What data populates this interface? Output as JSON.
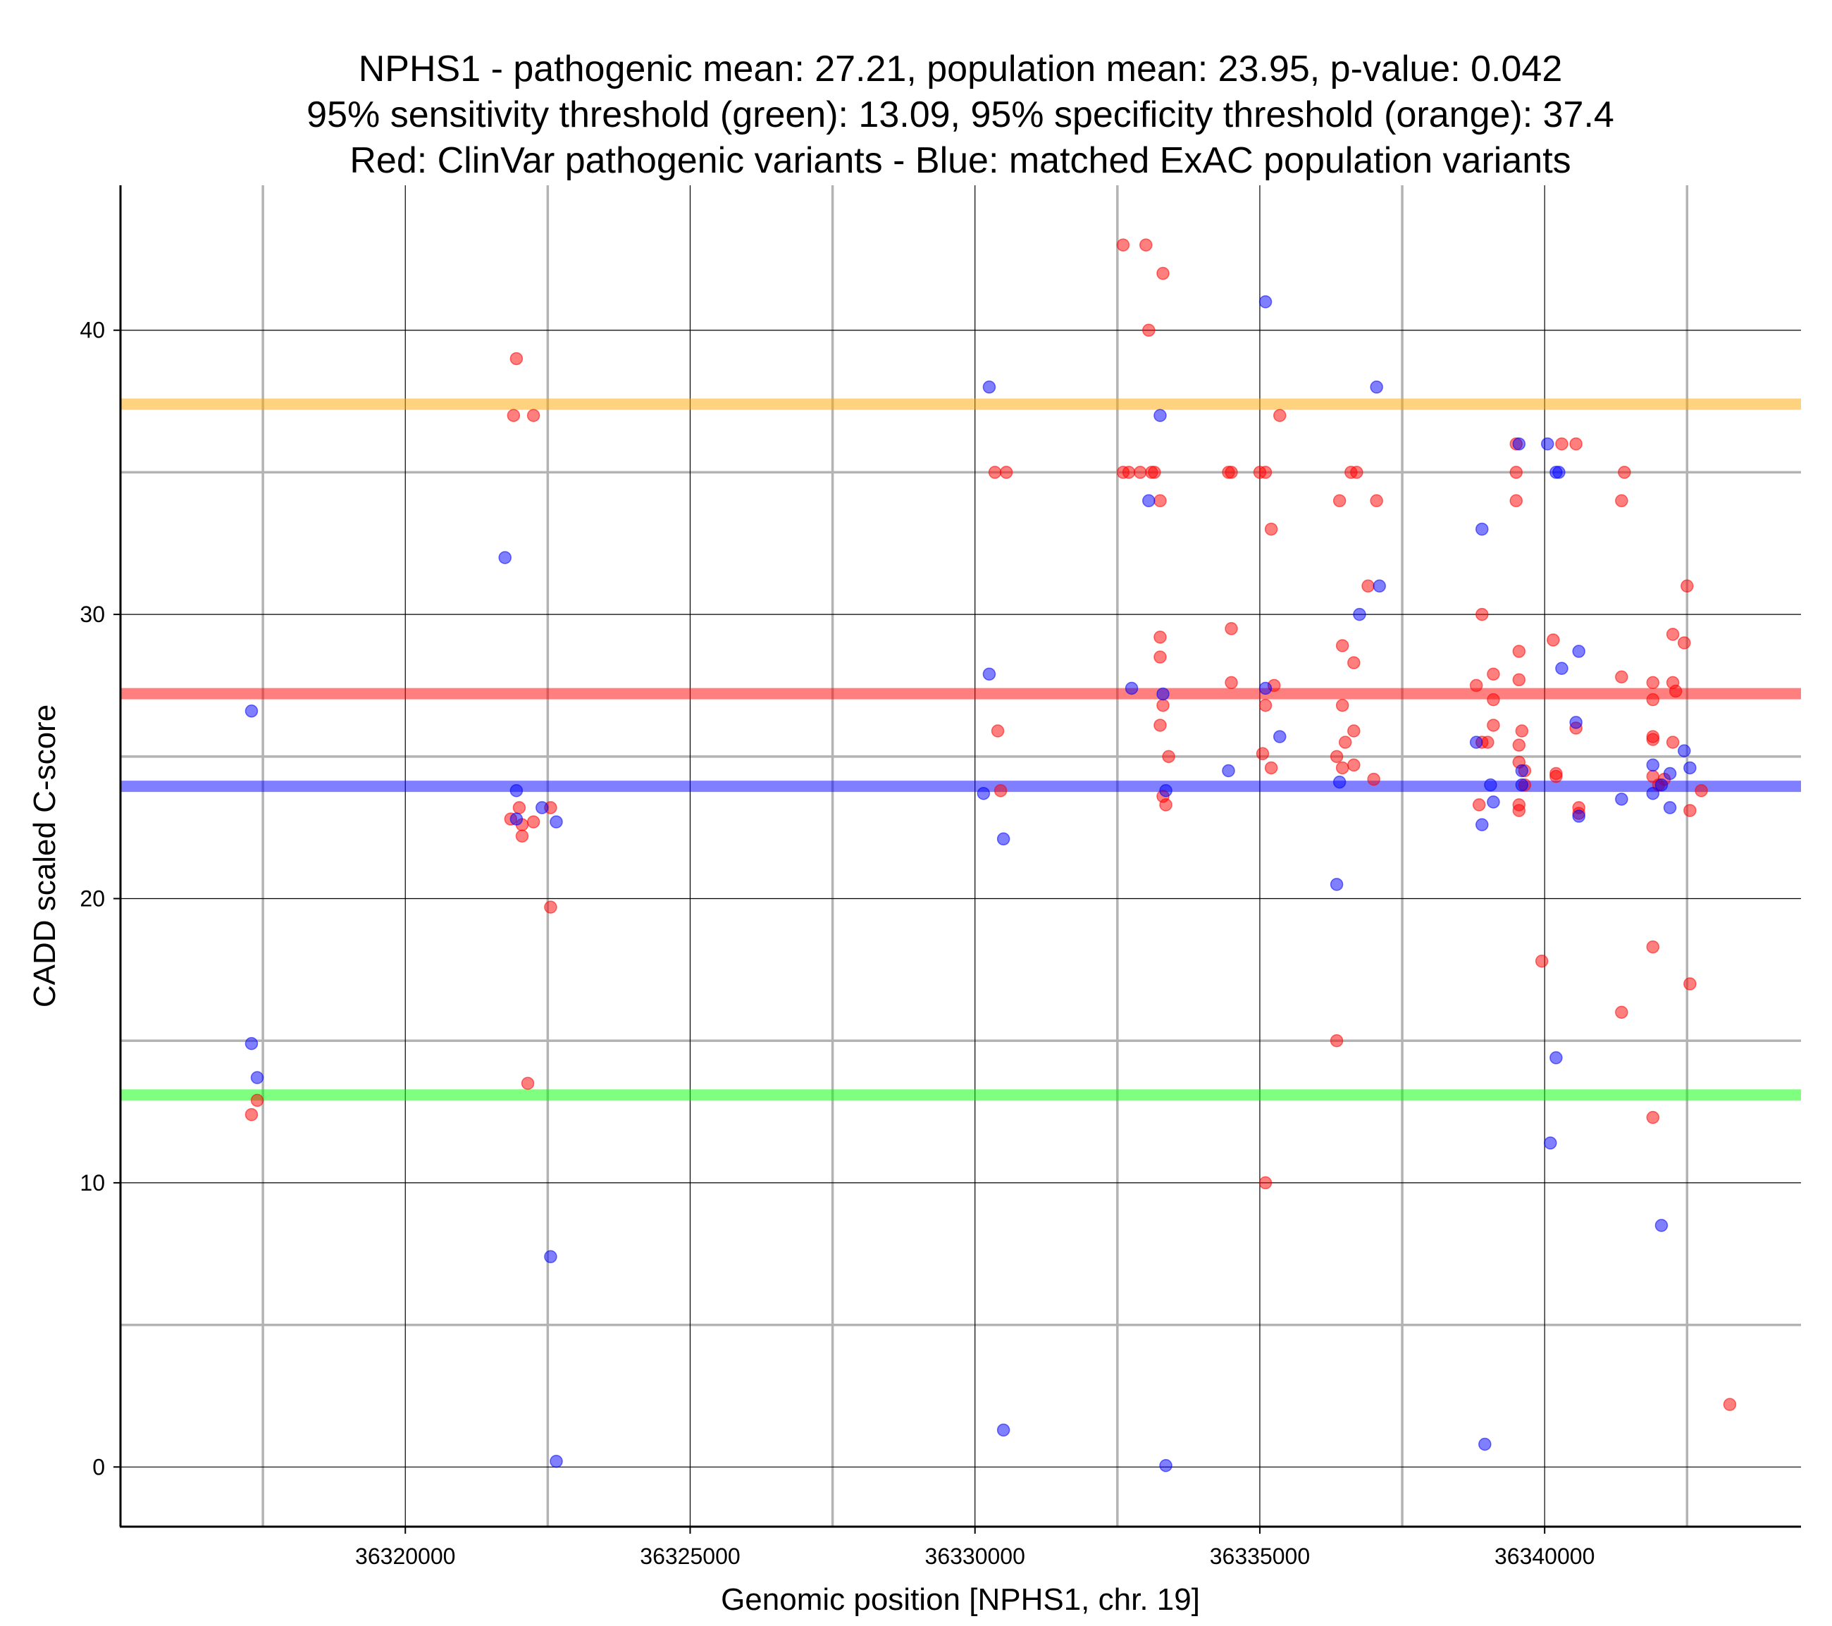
{
  "chart_data": {
    "type": "scatter",
    "title": [
      "NPHS1 - pathogenic mean: 27.21, population mean: 23.95, p-value: 0.042",
      "95% sensitivity threshold (green): 13.09, 95% specificity threshold (orange): 37.4",
      "Red: ClinVar pathogenic variants - Blue: matched ExAC population variants"
    ],
    "xlabel": "Genomic position [NPHS1, chr. 19]",
    "ylabel": "CADD scaled C-score",
    "xlim": [
      36315000,
      36344500
    ],
    "ylim": [
      -2.1,
      45.1
    ],
    "x_major_ticks": [
      36320000,
      36325000,
      36330000,
      36335000,
      36340000
    ],
    "x_tick_labels": [
      "36320000",
      "36325000",
      "36330000",
      "36335000",
      "36340000"
    ],
    "x_minor_gridlines": [
      36317500,
      36322500,
      36327500,
      36332500,
      36337500,
      36342500
    ],
    "y_major_ticks": [
      0,
      10,
      20,
      30,
      40
    ],
    "y_tick_labels": [
      "0",
      "10",
      "20",
      "30",
      "40"
    ],
    "y_minor_gridlines": [
      5,
      15,
      25,
      35
    ],
    "grid": true,
    "hlines": [
      {
        "name": "specificity-threshold",
        "value": 37.4,
        "color": "#ffa500"
      },
      {
        "name": "pathogenic-mean",
        "value": 27.21,
        "color": "#ff0000"
      },
      {
        "name": "population-mean",
        "value": 23.95,
        "color": "#0000ff"
      },
      {
        "name": "sensitivity-threshold",
        "value": 13.09,
        "color": "#00ff00"
      }
    ],
    "series": [
      {
        "name": "ClinVar pathogenic variants",
        "color": "#ff0000",
        "points": [
          [
            36317300,
            12.4
          ],
          [
            36317400,
            12.9
          ],
          [
            36321850,
            22.8
          ],
          [
            36321900,
            37.0
          ],
          [
            36321950,
            39.0
          ],
          [
            36322000,
            23.2
          ],
          [
            36322050,
            22.6
          ],
          [
            36322050,
            22.2
          ],
          [
            36322150,
            13.5
          ],
          [
            36322250,
            22.7
          ],
          [
            36322250,
            37.0
          ],
          [
            36322550,
            23.2
          ],
          [
            36322550,
            19.7
          ],
          [
            36330350,
            35.0
          ],
          [
            36330400,
            25.9
          ],
          [
            36330450,
            23.8
          ],
          [
            36330550,
            35.0
          ],
          [
            36332600,
            43.0
          ],
          [
            36332600,
            35.0
          ],
          [
            36332700,
            35.0
          ],
          [
            36332900,
            35.0
          ],
          [
            36333000,
            43.0
          ],
          [
            36333050,
            40.0
          ],
          [
            36333100,
            35.0
          ],
          [
            36333150,
            35.0
          ],
          [
            36333250,
            34.0
          ],
          [
            36333250,
            29.2
          ],
          [
            36333250,
            28.5
          ],
          [
            36333250,
            26.1
          ],
          [
            36333300,
            42.0
          ],
          [
            36333300,
            26.8
          ],
          [
            36333300,
            23.6
          ],
          [
            36333350,
            23.3
          ],
          [
            36333400,
            25.0
          ],
          [
            36334450,
            35.0
          ],
          [
            36334500,
            35.0
          ],
          [
            36334500,
            29.5
          ],
          [
            36334500,
            27.6
          ],
          [
            36335000,
            35.0
          ],
          [
            36335050,
            25.1
          ],
          [
            36335100,
            35.0
          ],
          [
            36335100,
            26.8
          ],
          [
            36335100,
            10.0
          ],
          [
            36335200,
            33.0
          ],
          [
            36335200,
            24.6
          ],
          [
            36335250,
            27.5
          ],
          [
            36335350,
            37.0
          ],
          [
            36336350,
            25.0
          ],
          [
            36336350,
            15.0
          ],
          [
            36336400,
            34.0
          ],
          [
            36336450,
            28.9
          ],
          [
            36336450,
            26.8
          ],
          [
            36336450,
            24.6
          ],
          [
            36336500,
            25.5
          ],
          [
            36336600,
            35.0
          ],
          [
            36336650,
            28.3
          ],
          [
            36336650,
            25.9
          ],
          [
            36336650,
            24.7
          ],
          [
            36336700,
            35.0
          ],
          [
            36336900,
            31.0
          ],
          [
            36337000,
            24.2
          ],
          [
            36337050,
            34.0
          ],
          [
            36338800,
            27.5
          ],
          [
            36338850,
            23.3
          ],
          [
            36338900,
            30.0
          ],
          [
            36338900,
            25.5
          ],
          [
            36339000,
            25.5
          ],
          [
            36339100,
            27.9
          ],
          [
            36339100,
            27.0
          ],
          [
            36339100,
            26.1
          ],
          [
            36339500,
            36.0
          ],
          [
            36339500,
            35.0
          ],
          [
            36339500,
            34.0
          ],
          [
            36339550,
            28.7
          ],
          [
            36339550,
            27.7
          ],
          [
            36339550,
            25.4
          ],
          [
            36339550,
            24.8
          ],
          [
            36339550,
            23.3
          ],
          [
            36339550,
            23.1
          ],
          [
            36339600,
            25.9
          ],
          [
            36339650,
            24.5
          ],
          [
            36339650,
            24.0
          ],
          [
            36339950,
            17.8
          ],
          [
            36340150,
            29.1
          ],
          [
            36340200,
            24.4
          ],
          [
            36340200,
            24.3
          ],
          [
            36340300,
            36.0
          ],
          [
            36340550,
            36.0
          ],
          [
            36340550,
            26.0
          ],
          [
            36340600,
            23.2
          ],
          [
            36340600,
            23.0
          ],
          [
            36341350,
            34.0
          ],
          [
            36341350,
            27.8
          ],
          [
            36341350,
            16.0
          ],
          [
            36341400,
            35.0
          ],
          [
            36341900,
            27.6
          ],
          [
            36341900,
            27.0
          ],
          [
            36341900,
            25.7
          ],
          [
            36341900,
            25.6
          ],
          [
            36341900,
            24.3
          ],
          [
            36341900,
            18.3
          ],
          [
            36341900,
            12.3
          ],
          [
            36342000,
            24.0
          ],
          [
            36342100,
            24.2
          ],
          [
            36342250,
            27.6
          ],
          [
            36342250,
            29.3
          ],
          [
            36342250,
            25.5
          ],
          [
            36342300,
            27.3
          ],
          [
            36342450,
            29.0
          ],
          [
            36342500,
            31.0
          ],
          [
            36342550,
            23.1
          ],
          [
            36342550,
            17.0
          ],
          [
            36342750,
            23.8
          ],
          [
            36343250,
            2.2
          ]
        ]
      },
      {
        "name": "matched ExAC population variants",
        "color": "#0000ff",
        "points": [
          [
            36317300,
            26.6
          ],
          [
            36317300,
            14.9
          ],
          [
            36317400,
            13.7
          ],
          [
            36321750,
            32.0
          ],
          [
            36321950,
            23.8
          ],
          [
            36321950,
            22.8
          ],
          [
            36322400,
            23.2
          ],
          [
            36322550,
            7.4
          ],
          [
            36322650,
            22.7
          ],
          [
            36322650,
            0.2
          ],
          [
            36330150,
            23.7
          ],
          [
            36330250,
            38.0
          ],
          [
            36330250,
            27.9
          ],
          [
            36330500,
            22.1
          ],
          [
            36330500,
            1.3
          ],
          [
            36332750,
            27.4
          ],
          [
            36333050,
            34.0
          ],
          [
            36333250,
            37.0
          ],
          [
            36333300,
            27.2
          ],
          [
            36333350,
            23.8
          ],
          [
            36333350,
            0.05
          ],
          [
            36334450,
            24.5
          ],
          [
            36335100,
            41.0
          ],
          [
            36335100,
            27.4
          ],
          [
            36335350,
            25.7
          ],
          [
            36336350,
            20.5
          ],
          [
            36336400,
            24.1
          ],
          [
            36336750,
            30.0
          ],
          [
            36337050,
            38.0
          ],
          [
            36337100,
            31.0
          ],
          [
            36338800,
            25.5
          ],
          [
            36338900,
            33.0
          ],
          [
            36338900,
            22.6
          ],
          [
            36338950,
            0.8
          ],
          [
            36339050,
            24.0
          ],
          [
            36339100,
            23.4
          ],
          [
            36339550,
            36.0
          ],
          [
            36339600,
            24.5
          ],
          [
            36339600,
            24.0
          ],
          [
            36340050,
            36.0
          ],
          [
            36340200,
            14.4
          ],
          [
            36340100,
            11.4
          ],
          [
            36340200,
            35.0
          ],
          [
            36340250,
            35.0
          ],
          [
            36340300,
            28.1
          ],
          [
            36340550,
            26.2
          ],
          [
            36340600,
            28.7
          ],
          [
            36340600,
            22.9
          ],
          [
            36341350,
            23.5
          ],
          [
            36341900,
            24.7
          ],
          [
            36341900,
            23.7
          ],
          [
            36342050,
            24.0
          ],
          [
            36342050,
            8.5
          ],
          [
            36342200,
            23.2
          ],
          [
            36342200,
            24.4
          ],
          [
            36342450,
            25.2
          ],
          [
            36342550,
            24.6
          ]
        ]
      }
    ]
  }
}
